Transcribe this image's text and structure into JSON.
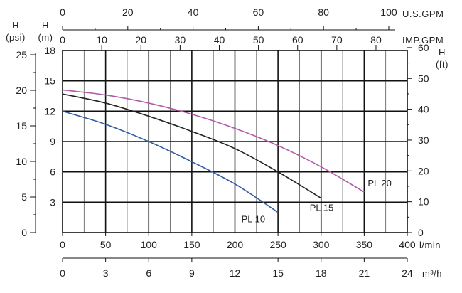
{
  "chart_data": {
    "type": "line",
    "x": {
      "unit": "l/min",
      "ticks": [
        0,
        50,
        100,
        150,
        200,
        250,
        300,
        350,
        400
      ],
      "range": [
        0,
        400
      ]
    },
    "y": {
      "unit_top": "H",
      "unit_bottom": "(m)",
      "ticks": [
        3,
        6,
        9,
        12,
        15,
        18
      ],
      "range": [
        0,
        18
      ]
    },
    "secondary_axes": {
      "us_gpm": {
        "unit": "U.S.GPM",
        "ticks": [
          0,
          20,
          40,
          60,
          80,
          100
        ]
      },
      "imp_gpm": {
        "unit": "IMP.GPM",
        "ticks": [
          0,
          10,
          20,
          30,
          40,
          50,
          60,
          70,
          80
        ]
      },
      "m3h": {
        "unit": "m³/h",
        "ticks": [
          0,
          3,
          6,
          9,
          12,
          15,
          18,
          21,
          24
        ]
      },
      "psi": {
        "unit_top": "H",
        "unit_bottom": "(psi)",
        "ticks": [
          0,
          5,
          10,
          15,
          20,
          25
        ]
      },
      "ft": {
        "unit_top": "H",
        "unit_bottom": "(ft)",
        "ticks": [
          0,
          10,
          20,
          30,
          40,
          50,
          60
        ]
      }
    },
    "series": [
      {
        "name": "PL 10",
        "color": "#2f5d9e",
        "points": [
          [
            0,
            12.0
          ],
          [
            50,
            10.7
          ],
          [
            100,
            9.0
          ],
          [
            150,
            7.0
          ],
          [
            200,
            4.8
          ],
          [
            250,
            2.0
          ]
        ]
      },
      {
        "name": "PL 15",
        "color": "#222222",
        "points": [
          [
            0,
            13.7
          ],
          [
            50,
            12.8
          ],
          [
            100,
            11.5
          ],
          [
            150,
            10.0
          ],
          [
            200,
            8.3
          ],
          [
            250,
            6.0
          ],
          [
            300,
            3.4
          ]
        ]
      },
      {
        "name": "PL 20",
        "color": "#b05aa8",
        "points": [
          [
            0,
            14.1
          ],
          [
            50,
            13.6
          ],
          [
            100,
            12.8
          ],
          [
            150,
            11.7
          ],
          [
            200,
            10.3
          ],
          [
            250,
            8.6
          ],
          [
            300,
            6.5
          ],
          [
            350,
            4.0
          ]
        ]
      }
    ],
    "grid": true
  }
}
